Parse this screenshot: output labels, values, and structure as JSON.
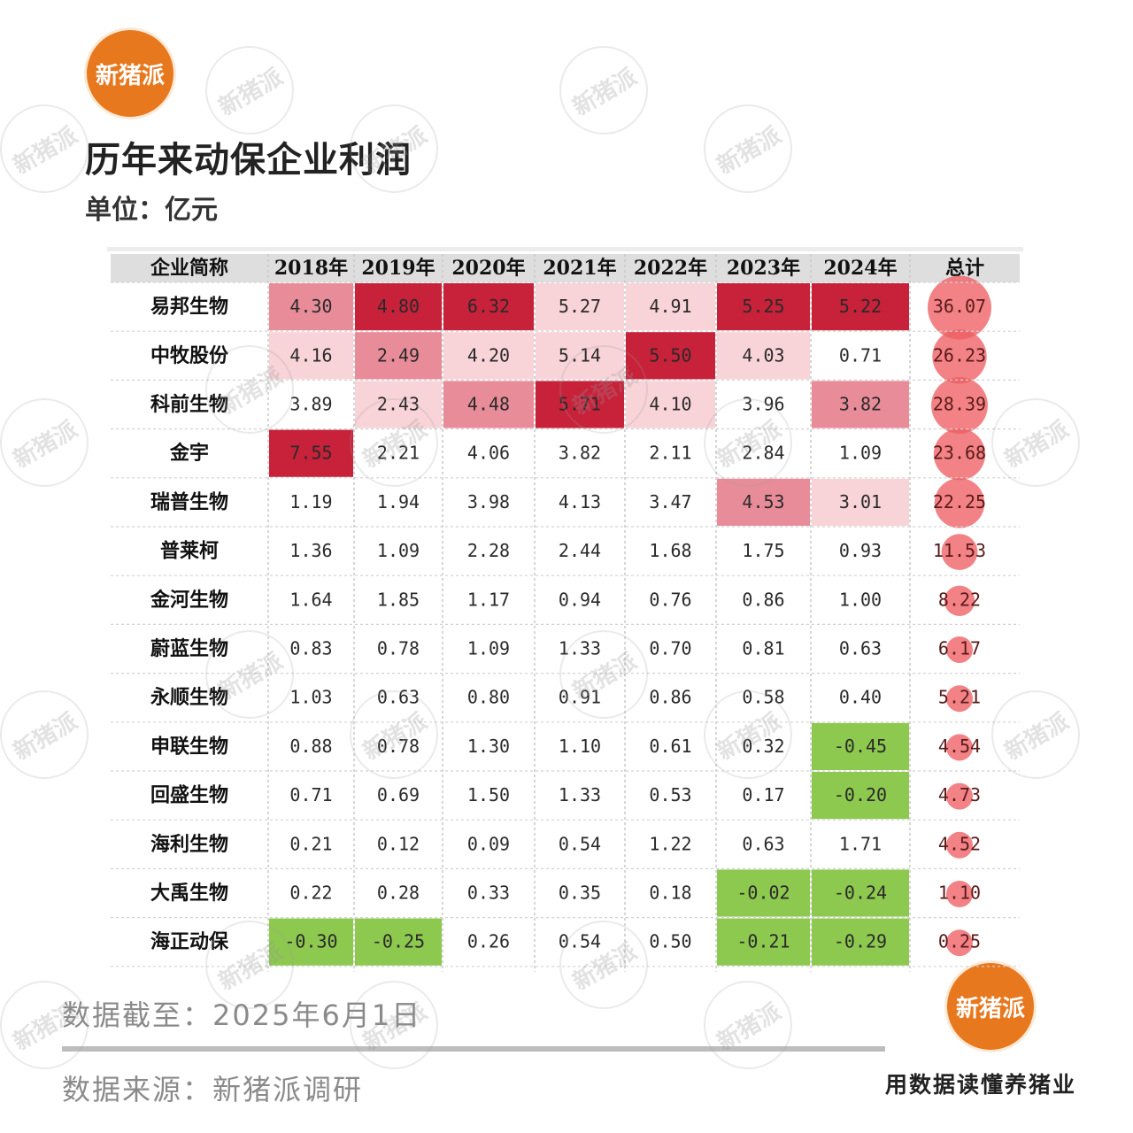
{
  "brand": {
    "name": "新猪派",
    "slogan": "用数据读懂养猪业"
  },
  "title": "历年来动保企业利润",
  "unit": "单位：亿元",
  "footer": {
    "date_label": "数据截至：",
    "date_value": "2025年6月1日",
    "source_label": "数据来源：",
    "source_value": "新猪派调研"
  },
  "colors": {
    "header_bg": "#dedede",
    "dark_red": "#c8213a",
    "mid_red": "#e88c99",
    "light_pink": "#f8d3d8",
    "green": "#8dc84f",
    "bubble": "#ee5f63",
    "orange": "#e8781e"
  },
  "chart_data": {
    "type": "table",
    "columns": [
      "企业简称",
      "2018年",
      "2019年",
      "2020年",
      "2021年",
      "2022年",
      "2023年",
      "2024年",
      "总计"
    ],
    "rows": [
      {
        "company": "易邦生物",
        "values": [
          "4.30",
          "4.80",
          "6.32",
          "5.27",
          "4.91",
          "5.25",
          "5.22"
        ],
        "shading": [
          "mid",
          "dark",
          "dark",
          "light",
          "light",
          "dark",
          "dark"
        ],
        "total": "36.07"
      },
      {
        "company": "中牧股份",
        "values": [
          "4.16",
          "2.49",
          "4.20",
          "5.14",
          "5.50",
          "4.03",
          "0.71"
        ],
        "shading": [
          "light",
          "mid",
          "light",
          "light",
          "dark",
          "light",
          "none"
        ],
        "total": "26.23"
      },
      {
        "company": "科前生物",
        "values": [
          "3.89",
          "2.43",
          "4.48",
          "5.71",
          "4.10",
          "3.96",
          "3.82"
        ],
        "shading": [
          "none",
          "light",
          "mid",
          "dark",
          "light",
          "none",
          "mid"
        ],
        "total": "28.39"
      },
      {
        "company": "金宇",
        "values": [
          "7.55",
          "2.21",
          "4.06",
          "3.82",
          "2.11",
          "2.84",
          "1.09"
        ],
        "shading": [
          "dark",
          "none",
          "none",
          "none",
          "none",
          "none",
          "none"
        ],
        "total": "23.68"
      },
      {
        "company": "瑞普生物",
        "values": [
          "1.19",
          "1.94",
          "3.98",
          "4.13",
          "3.47",
          "4.53",
          "3.01"
        ],
        "shading": [
          "none",
          "none",
          "none",
          "none",
          "none",
          "mid",
          "light"
        ],
        "total": "22.25"
      },
      {
        "company": "普莱柯",
        "values": [
          "1.36",
          "1.09",
          "2.28",
          "2.44",
          "1.68",
          "1.75",
          "0.93"
        ],
        "shading": [
          "none",
          "none",
          "none",
          "none",
          "none",
          "none",
          "none"
        ],
        "total": "11.53"
      },
      {
        "company": "金河生物",
        "values": [
          "1.64",
          "1.85",
          "1.17",
          "0.94",
          "0.76",
          "0.86",
          "1.00"
        ],
        "shading": [
          "none",
          "none",
          "none",
          "none",
          "none",
          "none",
          "none"
        ],
        "total": "8.22"
      },
      {
        "company": "蔚蓝生物",
        "values": [
          "0.83",
          "0.78",
          "1.09",
          "1.33",
          "0.70",
          "0.81",
          "0.63"
        ],
        "shading": [
          "none",
          "none",
          "none",
          "none",
          "none",
          "none",
          "none"
        ],
        "total": "6.17"
      },
      {
        "company": "永顺生物",
        "values": [
          "1.03",
          "0.63",
          "0.80",
          "0.91",
          "0.86",
          "0.58",
          "0.40"
        ],
        "shading": [
          "none",
          "none",
          "none",
          "none",
          "none",
          "none",
          "none"
        ],
        "total": "5.21"
      },
      {
        "company": "申联生物",
        "values": [
          "0.88",
          "0.78",
          "1.30",
          "1.10",
          "0.61",
          "0.32",
          "-0.45"
        ],
        "shading": [
          "none",
          "none",
          "none",
          "none",
          "none",
          "none",
          "green"
        ],
        "total": "4.54"
      },
      {
        "company": "回盛生物",
        "values": [
          "0.71",
          "0.69",
          "1.50",
          "1.33",
          "0.53",
          "0.17",
          "-0.20"
        ],
        "shading": [
          "none",
          "none",
          "none",
          "none",
          "none",
          "none",
          "green"
        ],
        "total": "4.73"
      },
      {
        "company": "海利生物",
        "values": [
          "0.21",
          "0.12",
          "0.09",
          "0.54",
          "1.22",
          "0.63",
          "1.71"
        ],
        "shading": [
          "none",
          "none",
          "none",
          "none",
          "none",
          "none",
          "none"
        ],
        "total": "4.52"
      },
      {
        "company": "大禹生物",
        "values": [
          "0.22",
          "0.28",
          "0.33",
          "0.35",
          "0.18",
          "-0.02",
          "-0.24"
        ],
        "shading": [
          "none",
          "none",
          "none",
          "none",
          "none",
          "green",
          "green"
        ],
        "total": "1.10"
      },
      {
        "company": "海正动保",
        "values": [
          "-0.30",
          "-0.25",
          "0.26",
          "0.54",
          "0.50",
          "-0.21",
          "-0.29"
        ],
        "shading": [
          "green",
          "green",
          "none",
          "none",
          "none",
          "green",
          "green"
        ],
        "total": "0.25"
      }
    ]
  }
}
